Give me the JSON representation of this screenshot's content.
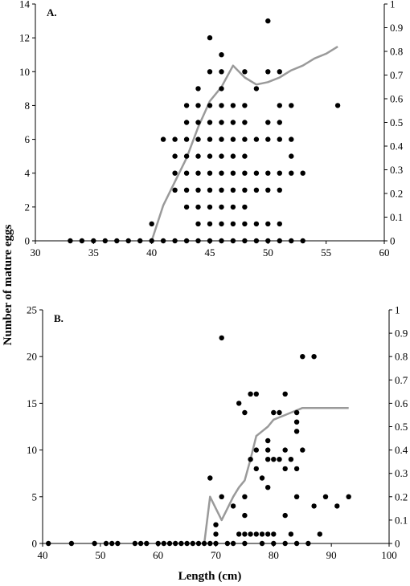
{
  "figure": {
    "ylabel": "Number of mature eggs",
    "xlabel": "Length (cm)"
  },
  "chart_data": [
    {
      "type": "scatter",
      "panel_label": "A.",
      "xlim": [
        30,
        60
      ],
      "xticks": [
        30,
        35,
        40,
        45,
        50,
        55,
        60
      ],
      "ylim": [
        0,
        14
      ],
      "yticks": [
        0,
        2,
        4,
        6,
        8,
        10,
        12,
        14
      ],
      "y2lim": [
        0,
        1
      ],
      "y2ticks": [
        "0",
        "0.1",
        "0.2",
        "0.3",
        "0.4",
        "0.5",
        "0.6",
        "0.7",
        "0.8",
        "0.9",
        "1"
      ],
      "marker_color": "#000000",
      "line_color": "#9a9a9a",
      "series": [
        {
          "axis": "left",
          "kind": "points",
          "x": [
            33,
            34,
            35,
            36,
            37,
            38,
            39,
            40,
            40,
            41,
            41,
            42,
            42,
            42,
            42,
            42,
            43,
            43,
            43,
            43,
            43,
            43,
            43,
            43,
            44,
            44,
            44,
            44,
            44,
            44,
            44,
            44,
            44,
            44,
            45,
            45,
            45,
            45,
            45,
            45,
            45,
            45,
            45,
            45,
            45,
            46,
            46,
            46,
            46,
            46,
            46,
            46,
            46,
            46,
            46,
            46,
            46,
            47,
            47,
            47,
            47,
            47,
            47,
            47,
            47,
            47,
            48,
            48,
            48,
            48,
            48,
            48,
            48,
            48,
            48,
            48,
            49,
            49,
            49,
            49,
            49,
            49,
            50,
            50,
            50,
            50,
            50,
            50,
            50,
            50,
            51,
            51,
            51,
            51,
            51,
            51,
            51,
            51,
            52,
            52,
            52,
            52,
            52,
            53,
            53,
            56
          ],
          "y": [
            0,
            0,
            0,
            0,
            0,
            0,
            0,
            0,
            1,
            0,
            6,
            0,
            3,
            4,
            5,
            6,
            0,
            2,
            3,
            4,
            5,
            6,
            7,
            8,
            0,
            1,
            2,
            3,
            4,
            5,
            6,
            7,
            8,
            9,
            0,
            1,
            2,
            3,
            4,
            5,
            6,
            7,
            8,
            10,
            12,
            0,
            1,
            2,
            3,
            4,
            5,
            6,
            7,
            8,
            9,
            10,
            11,
            0,
            1,
            2,
            3,
            4,
            5,
            6,
            7,
            8,
            0,
            1,
            2,
            3,
            4,
            5,
            6,
            7,
            8,
            10,
            0,
            1,
            3,
            4,
            6,
            9,
            0,
            1,
            3,
            4,
            6,
            7,
            10,
            13,
            0,
            1,
            3,
            4,
            6,
            7,
            8,
            10,
            0,
            4,
            5,
            6,
            8,
            0,
            4,
            8
          ]
        },
        {
          "axis": "right",
          "kind": "line",
          "x": [
            40,
            41,
            42,
            43,
            44,
            45,
            46,
            47,
            48,
            49,
            50,
            51,
            52,
            53,
            54,
            55,
            56
          ],
          "y": [
            0.0,
            0.15,
            0.25,
            0.35,
            0.48,
            0.59,
            0.65,
            0.74,
            0.69,
            0.66,
            0.67,
            0.69,
            0.72,
            0.74,
            0.77,
            0.79,
            0.82
          ]
        }
      ]
    },
    {
      "type": "scatter",
      "panel_label": "B.",
      "xlim": [
        40,
        100
      ],
      "xticks": [
        40,
        50,
        60,
        70,
        80,
        90,
        100
      ],
      "ylim": [
        0,
        25
      ],
      "yticks": [
        0,
        5,
        10,
        15,
        20,
        25
      ],
      "y2lim": [
        0,
        1
      ],
      "y2ticks": [
        "0",
        "0.1",
        "0.2",
        "0.3",
        "0.4",
        "0.5",
        "0.6",
        "0.7",
        "0.8",
        "0.9",
        "1"
      ],
      "marker_color": "#000000",
      "line_color": "#9a9a9a",
      "series": [
        {
          "axis": "left",
          "kind": "points",
          "x": [
            41,
            45,
            49,
            51,
            52,
            53,
            56,
            57,
            58,
            60,
            61,
            62,
            63,
            64,
            65,
            66,
            67,
            68,
            69,
            69,
            70,
            70,
            70,
            71,
            71,
            72,
            73,
            73,
            74,
            74,
            75,
            75,
            75,
            75,
            75,
            76,
            76,
            76,
            77,
            77,
            77,
            77,
            78,
            78,
            78,
            79,
            79,
            79,
            79,
            79,
            80,
            80,
            80,
            80,
            81,
            81,
            82,
            82,
            82,
            82,
            82,
            83,
            83,
            84,
            84,
            84,
            84,
            84,
            84,
            85,
            85,
            86,
            87,
            87,
            88,
            89,
            91,
            93
          ],
          "y": [
            0,
            0,
            0,
            0,
            0,
            0,
            0,
            0,
            0,
            0,
            0,
            0,
            0,
            0,
            0,
            0,
            0,
            0,
            0,
            7,
            0,
            1,
            2,
            5,
            22,
            0,
            0,
            4,
            1,
            15,
            0,
            1,
            3,
            5,
            14,
            1,
            9,
            16,
            1,
            8,
            10,
            16,
            0,
            1,
            7,
            1,
            6,
            9,
            10,
            11,
            0,
            1,
            9,
            14,
            9,
            14,
            0,
            3,
            8,
            10,
            16,
            1,
            9,
            0,
            5,
            8,
            12,
            13,
            14,
            10,
            20,
            0,
            4,
            20,
            1,
            5,
            4,
            5
          ]
        },
        {
          "axis": "right",
          "kind": "line",
          "x": [
            68,
            69,
            70,
            71,
            72,
            73,
            74,
            75,
            76,
            77,
            78,
            79,
            80,
            81,
            82,
            83,
            84,
            85,
            86,
            87,
            88,
            89,
            90,
            91,
            92,
            93
          ],
          "y": [
            0.0,
            0.2,
            0.15,
            0.1,
            0.15,
            0.2,
            0.24,
            0.27,
            0.36,
            0.46,
            0.48,
            0.5,
            0.53,
            0.54,
            0.55,
            0.56,
            0.57,
            0.58,
            0.58,
            0.58,
            0.58,
            0.58,
            0.58,
            0.58,
            0.58,
            0.58
          ]
        }
      ]
    }
  ]
}
